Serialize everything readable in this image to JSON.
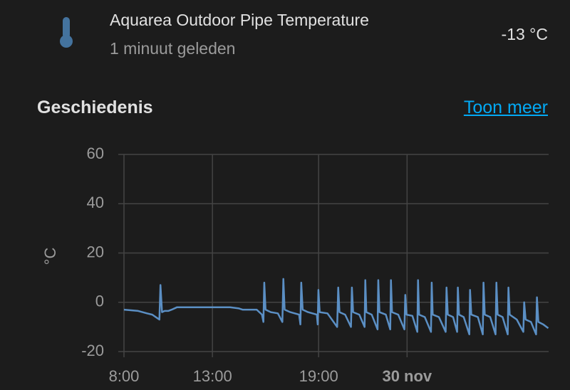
{
  "header": {
    "title": "Aquarea Outdoor Pipe Temperature",
    "subtitle": "1 minuut geleden",
    "state": "-13 °C"
  },
  "history": {
    "title": "Geschiedenis",
    "link": "Toon meer"
  },
  "chart_data": {
    "type": "line",
    "y_label": "°C",
    "x": [
      8.0,
      8.8,
      9.3,
      9.6,
      9.9,
      10.0,
      10.06,
      10.15,
      10.3,
      10.5,
      10.7,
      11.0,
      12.0,
      13.0,
      14.0,
      14.5,
      14.7,
      15.5,
      15.8,
      15.88,
      15.93,
      16.0,
      16.3,
      16.7,
      16.95,
      17.01,
      17.08,
      17.4,
      17.9,
      17.97,
      18.02,
      18.1,
      18.4,
      18.9,
      18.95,
      18.99,
      19.06,
      19.5,
      20.05,
      20.11,
      20.18,
      20.5,
      20.83,
      20.88,
      20.95,
      21.3,
      21.6,
      21.64,
      21.7,
      22.0,
      22.33,
      22.37,
      22.44,
      22.8,
      23.05,
      23.09,
      23.15,
      23.5,
      23.85,
      23.9,
      23.97,
      24.3,
      24.58,
      24.62,
      24.68,
      25.0,
      25.35,
      25.39,
      25.45,
      25.8,
      26.18,
      26.23,
      26.3,
      26.6,
      26.83,
      26.87,
      26.94,
      27.2,
      27.52,
      27.56,
      27.63,
      28.0,
      28.28,
      28.32,
      28.39,
      28.7,
      29.0,
      29.05,
      29.12,
      29.4,
      29.69,
      29.73,
      29.8,
      30.2,
      30.57,
      30.62,
      30.7,
      31.0,
      31.29,
      31.34,
      31.42,
      31.7,
      31.98
    ],
    "series": [
      {
        "color": "#5b8fc4",
        "values": [
          -3,
          -3.5,
          -4.5,
          -5,
          -6.5,
          -7,
          7,
          -4,
          -3.5,
          -3.5,
          -3,
          -2,
          -2,
          -2,
          -2,
          -2.5,
          -3,
          -3,
          -5,
          -8,
          8,
          -3,
          -4,
          -4.5,
          -8,
          9.5,
          -3,
          -4,
          -5,
          -9,
          8,
          -3,
          -4,
          -5,
          -9,
          5,
          -4,
          -4.5,
          -10,
          6,
          -4,
          -5,
          -10,
          6,
          -4,
          -5,
          -10,
          9,
          -4,
          -5,
          -11,
          9,
          -4,
          -5,
          -11,
          9,
          -4,
          -5,
          -11,
          3,
          -5,
          -5.5,
          -12,
          9,
          -5,
          -6,
          -12,
          8,
          -5,
          -6,
          -12,
          6,
          -5,
          -6,
          -12,
          6,
          -5,
          -6,
          -13,
          5,
          -5,
          -6,
          -13,
          8,
          -5,
          -6,
          -13,
          8,
          -5,
          -6,
          -13,
          6,
          -5,
          -7,
          -12,
          0,
          -7,
          -8,
          -13,
          2,
          -8,
          -9,
          -10.5
        ]
      }
    ],
    "xlim": [
      8,
      32
    ],
    "ylim": [
      -20,
      60
    ],
    "xticks": [
      {
        "value": 8,
        "label": "8:00"
      },
      {
        "value": 13,
        "label": "13:00"
      },
      {
        "value": 19,
        "label": "19:00"
      },
      {
        "value": 24,
        "label": "30 nov"
      }
    ],
    "yticks": [
      -20,
      0,
      20,
      40,
      60
    ],
    "grid": true
  }
}
